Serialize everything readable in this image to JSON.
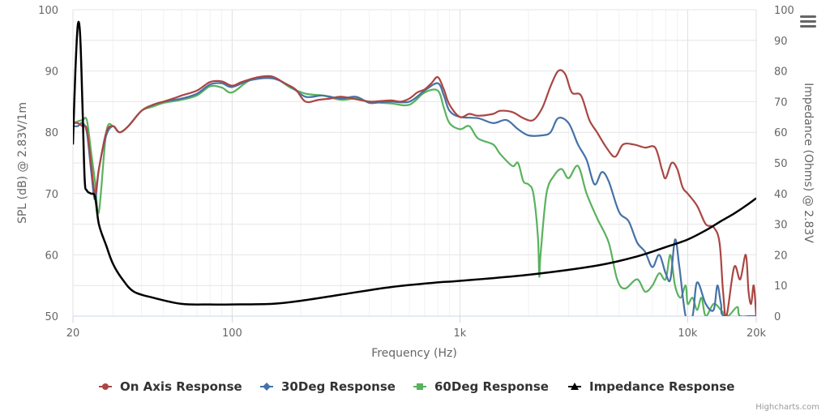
{
  "chart_data": {
    "type": "line",
    "xlabel": "Frequency (Hz)",
    "ylabel_left": "SPL (dB) @ 2.83V/1m",
    "ylabel_right": "Impedance (Ohms) @ 2.83V",
    "x_scale": "log",
    "xlim": [
      20,
      20000
    ],
    "ylim_left": [
      50,
      100
    ],
    "ylim_right": [
      0,
      100
    ],
    "x_ticks": [
      {
        "value": 20,
        "label": "20"
      },
      {
        "value": 100,
        "label": "100"
      },
      {
        "value": 1000,
        "label": "1k"
      },
      {
        "value": 10000,
        "label": "10k"
      },
      {
        "value": 20000,
        "label": "20k"
      }
    ],
    "y_ticks_left": [
      "50",
      "60",
      "70",
      "80",
      "90",
      "100"
    ],
    "y_ticks_right": [
      "0",
      "10",
      "20",
      "30",
      "40",
      "50",
      "60",
      "70",
      "80",
      "90",
      "100"
    ],
    "grid": true,
    "legend_position": "bottom",
    "series": [
      {
        "name": "On Axis Response",
        "axis": "left",
        "color": "#aa4643",
        "marker": "circle",
        "points": [
          [
            20,
            81.5
          ],
          [
            21,
            81.5
          ],
          [
            22,
            81
          ],
          [
            23,
            80.5
          ],
          [
            24,
            75
          ],
          [
            25,
            70
          ],
          [
            26,
            74
          ],
          [
            28,
            80
          ],
          [
            30,
            81
          ],
          [
            32,
            80
          ],
          [
            35,
            81
          ],
          [
            40,
            83.5
          ],
          [
            45,
            84.5
          ],
          [
            50,
            85
          ],
          [
            55,
            85.5
          ],
          [
            60,
            86
          ],
          [
            70,
            86.8
          ],
          [
            80,
            88.2
          ],
          [
            90,
            88.3
          ],
          [
            100,
            87.6
          ],
          [
            110,
            88.2
          ],
          [
            130,
            89
          ],
          [
            150,
            89.1
          ],
          [
            170,
            88
          ],
          [
            190,
            87
          ],
          [
            210,
            85
          ],
          [
            240,
            85.3
          ],
          [
            270,
            85.5
          ],
          [
            300,
            85.8
          ],
          [
            350,
            85.4
          ],
          [
            400,
            85
          ],
          [
            450,
            85.1
          ],
          [
            500,
            85.2
          ],
          [
            550,
            85
          ],
          [
            600,
            85.5
          ],
          [
            650,
            86.5
          ],
          [
            700,
            87
          ],
          [
            750,
            88
          ],
          [
            800,
            89
          ],
          [
            850,
            87
          ],
          [
            900,
            84.5
          ],
          [
            1000,
            82.5
          ],
          [
            1100,
            83
          ],
          [
            1200,
            82.7
          ],
          [
            1400,
            83
          ],
          [
            1500,
            83.5
          ],
          [
            1700,
            83.3
          ],
          [
            1900,
            82.3
          ],
          [
            2100,
            82
          ],
          [
            2300,
            84
          ],
          [
            2500,
            87.5
          ],
          [
            2700,
            90
          ],
          [
            2900,
            89.5
          ],
          [
            3100,
            86.5
          ],
          [
            3400,
            86
          ],
          [
            3700,
            82
          ],
          [
            4000,
            80
          ],
          [
            4400,
            77.5
          ],
          [
            4800,
            76
          ],
          [
            5200,
            78
          ],
          [
            5800,
            78
          ],
          [
            6500,
            77.5
          ],
          [
            7200,
            77.5
          ],
          [
            7700,
            74
          ],
          [
            8000,
            72.5
          ],
          [
            8500,
            75
          ],
          [
            9000,
            74
          ],
          [
            9500,
            71
          ],
          [
            10000,
            70
          ],
          [
            11000,
            68
          ],
          [
            12000,
            65
          ],
          [
            13000,
            64.5
          ],
          [
            13800,
            62
          ],
          [
            14300,
            54
          ],
          [
            14800,
            50
          ],
          [
            16000,
            58
          ],
          [
            17000,
            56
          ],
          [
            18000,
            60
          ],
          [
            18500,
            54
          ],
          [
            19000,
            52
          ],
          [
            19500,
            55
          ],
          [
            20000,
            50
          ]
        ]
      },
      {
        "name": "30Deg Response",
        "axis": "left",
        "color": "#4572a7",
        "marker": "diamond",
        "points": [
          [
            20,
            81
          ],
          [
            21,
            81
          ],
          [
            22,
            81.5
          ],
          [
            23,
            80
          ],
          [
            24,
            74
          ],
          [
            25,
            69
          ],
          [
            26,
            74
          ],
          [
            28,
            79.5
          ],
          [
            30,
            81
          ],
          [
            32,
            80
          ],
          [
            35,
            81
          ],
          [
            40,
            83.5
          ],
          [
            45,
            84.5
          ],
          [
            50,
            85
          ],
          [
            60,
            85.5
          ],
          [
            70,
            86.3
          ],
          [
            80,
            87.8
          ],
          [
            90,
            88
          ],
          [
            100,
            87.4
          ],
          [
            120,
            88.5
          ],
          [
            150,
            88.8
          ],
          [
            180,
            87.5
          ],
          [
            210,
            85.8
          ],
          [
            250,
            86
          ],
          [
            300,
            85.5
          ],
          [
            350,
            85.8
          ],
          [
            400,
            84.8
          ],
          [
            450,
            84.9
          ],
          [
            500,
            85
          ],
          [
            600,
            85
          ],
          [
            700,
            86.8
          ],
          [
            800,
            88
          ],
          [
            850,
            86
          ],
          [
            900,
            83.5
          ],
          [
            1000,
            82.5
          ],
          [
            1200,
            82.3
          ],
          [
            1400,
            81.5
          ],
          [
            1600,
            82
          ],
          [
            1800,
            80.5
          ],
          [
            2000,
            79.5
          ],
          [
            2300,
            79.5
          ],
          [
            2500,
            80
          ],
          [
            2700,
            82.3
          ],
          [
            3000,
            81.5
          ],
          [
            3300,
            78
          ],
          [
            3600,
            75.5
          ],
          [
            3900,
            71.5
          ],
          [
            4200,
            73.5
          ],
          [
            4500,
            72
          ],
          [
            5000,
            67
          ],
          [
            5500,
            65.5
          ],
          [
            6000,
            62
          ],
          [
            6500,
            60.5
          ],
          [
            7000,
            58
          ],
          [
            7500,
            60
          ],
          [
            8000,
            57
          ],
          [
            8400,
            56
          ],
          [
            8800,
            62.5
          ],
          [
            9200,
            58
          ],
          [
            9800,
            50
          ],
          [
            10500,
            50
          ],
          [
            11000,
            55.5
          ],
          [
            12000,
            52
          ],
          [
            13000,
            51
          ],
          [
            13500,
            55
          ],
          [
            14000,
            52
          ],
          [
            14500,
            50
          ],
          [
            19000,
            50
          ],
          [
            20000,
            50
          ]
        ]
      },
      {
        "name": "60Deg Response",
        "axis": "left",
        "color": "#59b25d",
        "marker": "square",
        "points": [
          [
            20,
            81.5
          ],
          [
            22,
            82
          ],
          [
            23,
            82
          ],
          [
            24,
            77
          ],
          [
            25,
            72
          ],
          [
            26,
            67
          ],
          [
            28,
            80
          ],
          [
            30,
            81
          ],
          [
            32,
            80
          ],
          [
            35,
            81
          ],
          [
            40,
            83.5
          ],
          [
            45,
            84.2
          ],
          [
            50,
            84.8
          ],
          [
            60,
            85.3
          ],
          [
            70,
            86
          ],
          [
            80,
            87.5
          ],
          [
            90,
            87.3
          ],
          [
            100,
            86.5
          ],
          [
            120,
            88.5
          ],
          [
            150,
            89
          ],
          [
            180,
            87.3
          ],
          [
            210,
            86.3
          ],
          [
            250,
            86
          ],
          [
            300,
            85.3
          ],
          [
            350,
            85.5
          ],
          [
            400,
            85
          ],
          [
            500,
            84.7
          ],
          [
            600,
            84.5
          ],
          [
            700,
            86.5
          ],
          [
            800,
            86.8
          ],
          [
            850,
            84
          ],
          [
            900,
            81.5
          ],
          [
            1000,
            80.5
          ],
          [
            1100,
            81
          ],
          [
            1200,
            79
          ],
          [
            1400,
            78
          ],
          [
            1500,
            76.5
          ],
          [
            1700,
            74.5
          ],
          [
            1800,
            75
          ],
          [
            1900,
            72
          ],
          [
            2000,
            71.5
          ],
          [
            2100,
            70
          ],
          [
            2200,
            63
          ],
          [
            2230,
            56.5
          ],
          [
            2260,
            60
          ],
          [
            2400,
            70
          ],
          [
            2600,
            73
          ],
          [
            2800,
            74
          ],
          [
            3000,
            72.5
          ],
          [
            3300,
            74.5
          ],
          [
            3600,
            70
          ],
          [
            4000,
            66
          ],
          [
            4500,
            62
          ],
          [
            4900,
            56
          ],
          [
            5300,
            54.5
          ],
          [
            6000,
            56
          ],
          [
            6500,
            54
          ],
          [
            7000,
            55
          ],
          [
            7500,
            57
          ],
          [
            8000,
            56
          ],
          [
            8400,
            60
          ],
          [
            8800,
            55
          ],
          [
            9300,
            53
          ],
          [
            9800,
            55
          ],
          [
            10000,
            52
          ],
          [
            10500,
            53
          ],
          [
            11000,
            51
          ],
          [
            11500,
            53
          ],
          [
            12000,
            50
          ],
          [
            13000,
            52
          ],
          [
            14000,
            51
          ],
          [
            15000,
            50
          ],
          [
            16500,
            51.5
          ],
          [
            17000,
            50
          ],
          [
            20000,
            50
          ]
        ]
      },
      {
        "name": "Impedance Response",
        "axis": "right",
        "color": "#000000",
        "marker": "triangle",
        "points": [
          [
            20,
            56
          ],
          [
            20.5,
            80
          ],
          [
            21,
            95
          ],
          [
            21.5,
            92
          ],
          [
            22,
            70
          ],
          [
            22.5,
            45
          ],
          [
            23,
            41
          ],
          [
            24,
            40
          ],
          [
            25,
            39
          ],
          [
            26,
            30
          ],
          [
            28,
            23
          ],
          [
            30,
            17
          ],
          [
            33,
            12
          ],
          [
            37,
            8
          ],
          [
            45,
            6
          ],
          [
            60,
            4
          ],
          [
            80,
            3.8
          ],
          [
            100,
            3.8
          ],
          [
            150,
            4
          ],
          [
            200,
            5
          ],
          [
            300,
            7
          ],
          [
            500,
            9.5
          ],
          [
            800,
            11
          ],
          [
            1000,
            11.5
          ],
          [
            2000,
            13.5
          ],
          [
            4000,
            16.5
          ],
          [
            6000,
            19.5
          ],
          [
            8000,
            22.5
          ],
          [
            10000,
            25
          ],
          [
            12000,
            28
          ],
          [
            14000,
            31
          ],
          [
            16000,
            33.5
          ],
          [
            18000,
            36
          ],
          [
            20000,
            38.5
          ]
        ]
      }
    ]
  },
  "menu": {
    "icon": "hamburger-menu-icon"
  },
  "credits": "Highcharts.com"
}
